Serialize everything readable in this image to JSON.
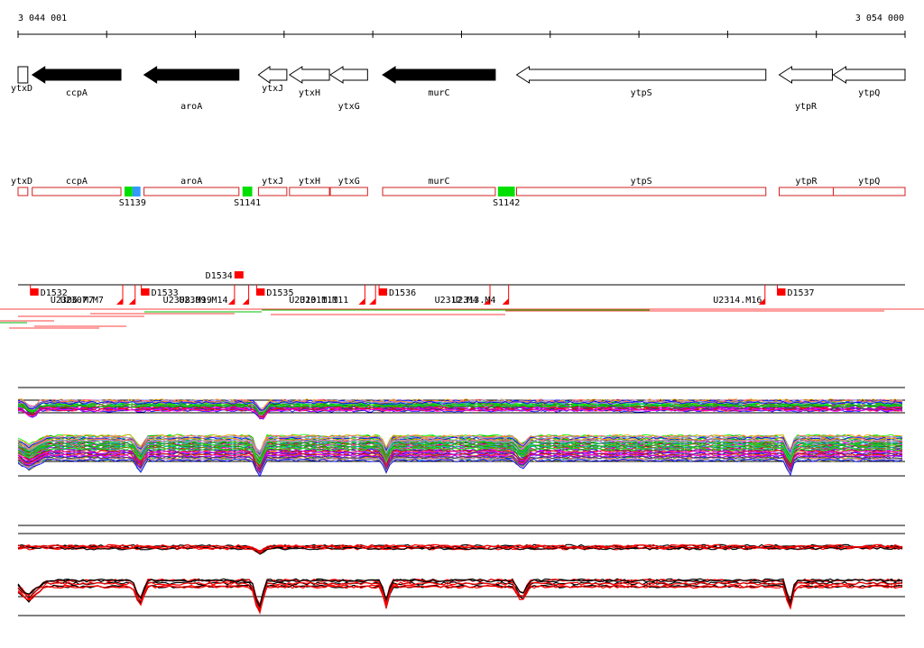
{
  "coordinates": {
    "start_label": "3 044 001",
    "end_label": "3 054 000",
    "start": 3044001,
    "end": 3054000
  },
  "genes": [
    {
      "name": "ytxD",
      "strand": "+",
      "filled": false,
      "from": 3044001,
      "to": 3044111,
      "label_row": 0
    },
    {
      "name": "ccpA",
      "strand": "-",
      "filled": true,
      "from": 3044161,
      "to": 3045161,
      "label_row": 1
    },
    {
      "name": "aroA",
      "strand": "-",
      "filled": true,
      "from": 3045421,
      "to": 3046491,
      "label_row": 2
    },
    {
      "name": "ytxJ",
      "strand": "-",
      "filled": false,
      "from": 3046711,
      "to": 3047031,
      "label_row": 0
    },
    {
      "name": "ytxH",
      "strand": "-",
      "filled": false,
      "from": 3047061,
      "to": 3047511,
      "label_row": 1
    },
    {
      "name": "ytxG",
      "strand": "-",
      "filled": false,
      "from": 3047521,
      "to": 3047941,
      "label_row": 2
    },
    {
      "name": "murC",
      "strand": "-",
      "filled": true,
      "from": 3048111,
      "to": 3049381,
      "label_row": 1
    },
    {
      "name": "ytpS",
      "strand": "-",
      "filled": false,
      "from": 3049621,
      "to": 3052431,
      "label_row": 1
    },
    {
      "name": "ytpR",
      "strand": "-",
      "filled": false,
      "from": 3052581,
      "to": 3053181,
      "label_row": 2
    },
    {
      "name": "ytpQ",
      "strand": "-",
      "filled": false,
      "from": 3053191,
      "to": 3054000,
      "label_row": 1
    }
  ],
  "transcripts": [
    {
      "name": "ytxD",
      "from": 3044001,
      "to": 3044111
    },
    {
      "name": "ccpA",
      "from": 3044161,
      "to": 3045161
    },
    {
      "name": "aroA",
      "from": 3045421,
      "to": 3046491
    },
    {
      "name": "ytxJ",
      "from": 3046711,
      "to": 3047031
    },
    {
      "name": "ytxH",
      "from": 3047061,
      "to": 3047511
    },
    {
      "name": "ytxG",
      "from": 3047521,
      "to": 3047941
    },
    {
      "name": "murC",
      "from": 3048111,
      "to": 3049381
    },
    {
      "name": "ytpS",
      "from": 3049621,
      "to": 3052431
    },
    {
      "name": "ytpR",
      "from": 3052581,
      "to": 3053191
    },
    {
      "name": "ytpQ",
      "from": 3053191,
      "to": 3054000
    }
  ],
  "segments": [
    {
      "name": "S1139",
      "from": 3045201,
      "to": 3045381,
      "colors": [
        "#00e000",
        "#3399ff"
      ]
    },
    {
      "name": "S1141",
      "from": 3046531,
      "to": 3046641,
      "colors": [
        "#00e000"
      ]
    },
    {
      "name": "S1142",
      "from": 3049411,
      "to": 3049601,
      "colors": [
        "#00e000"
      ]
    }
  ],
  "signals": {
    "down": [
      {
        "name": "D1532",
        "pos": 3044181
      },
      {
        "name": "D1533",
        "pos": 3045431
      },
      {
        "name": "D1534",
        "pos": 3046491,
        "raised": true
      },
      {
        "name": "D1535",
        "pos": 3046731
      },
      {
        "name": "D1536",
        "pos": 3048111
      },
      {
        "name": "D1537",
        "pos": 3052601
      }
    ],
    "up_labels": [
      {
        "text": "U2306.M7",
        "pos": 3044611
      },
      {
        "text": "U2307.M7",
        "pos": 3044721
      },
      {
        "text": "U2308.M19",
        "pos": 3045911
      },
      {
        "text": "U2309.M14",
        "pos": 3046091
      },
      {
        "text": "U2310.M11",
        "pos": 3047331
      },
      {
        "text": "U2311.M11",
        "pos": 3047451
      },
      {
        "text": "U2312.M4",
        "pos": 3048941
      },
      {
        "text": "U2313.M4",
        "pos": 3049141
      },
      {
        "text": "U2314.M16",
        "pos": 3052111
      }
    ],
    "up_markers": [
      3045181,
      3045321,
      3046441,
      3046601,
      3047911,
      3048031,
      3049321,
      3049531,
      3052421
    ]
  },
  "expression_panels": {
    "conditions_top": "multicolor",
    "summary_colors": [
      "#000000",
      "#ff0000"
    ]
  }
}
